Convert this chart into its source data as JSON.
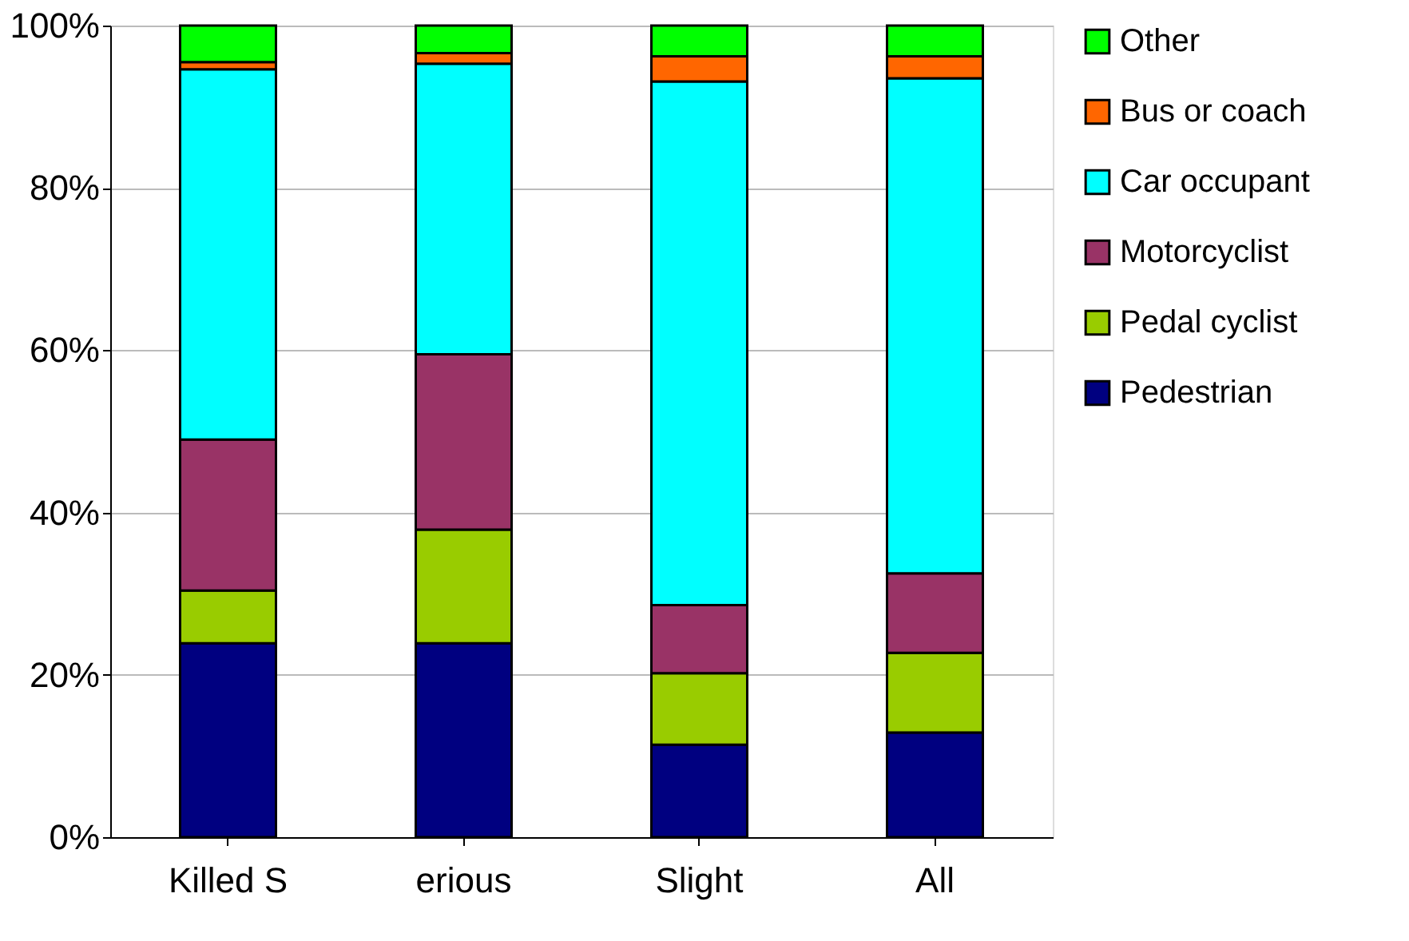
{
  "chart_data": {
    "type": "bar",
    "stacked": true,
    "categories": [
      "Killed S",
      "erious",
      "Slight",
      "All"
    ],
    "series": [
      {
        "name": "Pedestrian",
        "color": "#000080",
        "values": [
          23.9,
          23.9,
          11.4,
          12.9
        ]
      },
      {
        "name": "Pedal cyclist",
        "color": "#99cc00",
        "values": [
          6.5,
          14.0,
          8.8,
          9.8
        ]
      },
      {
        "name": "Motorcyclist",
        "color": "#993366",
        "values": [
          18.6,
          21.6,
          8.4,
          9.8
        ]
      },
      {
        "name": "Car occupant",
        "color": "#00ffff",
        "values": [
          45.6,
          35.8,
          64.5,
          61.0
        ]
      },
      {
        "name": "Bus or coach",
        "color": "#ff6600",
        "values": [
          0.9,
          1.3,
          3.1,
          2.7
        ]
      },
      {
        "name": "Other",
        "color": "#00ff00",
        "values": [
          4.5,
          3.4,
          3.8,
          3.8
        ]
      }
    ],
    "ylim": [
      0,
      100
    ],
    "yticks": [
      {
        "value": 0,
        "label": "0%"
      },
      {
        "value": 20,
        "label": "20%"
      },
      {
        "value": 40,
        "label": "40%"
      },
      {
        "value": 60,
        "label": "60%"
      },
      {
        "value": 80,
        "label": "80%"
      },
      {
        "value": 100,
        "label": "100%"
      }
    ],
    "grid": "y",
    "legend": "right"
  }
}
